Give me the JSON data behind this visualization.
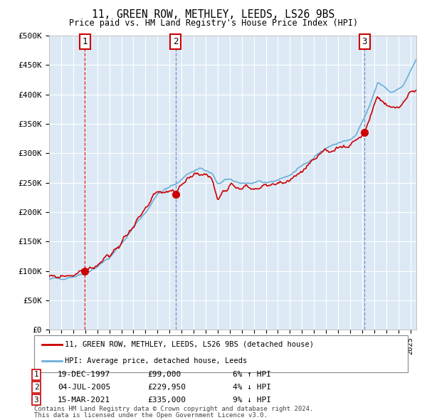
{
  "title": "11, GREEN ROW, METHLEY, LEEDS, LS26 9BS",
  "subtitle": "Price paid vs. HM Land Registry's House Price Index (HPI)",
  "legend_line1": "11, GREEN ROW, METHLEY, LEEDS, LS26 9BS (detached house)",
  "legend_line2": "HPI: Average price, detached house, Leeds",
  "transaction1": {
    "label": "1",
    "date": "19-DEC-1997",
    "price": 99000,
    "pct": "6%",
    "dir": "↑",
    "x_year": 1997.97
  },
  "transaction2": {
    "label": "2",
    "date": "04-JUL-2005",
    "price": 229950,
    "pct": "4%",
    "dir": "↓",
    "x_year": 2005.5
  },
  "transaction3": {
    "label": "3",
    "date": "15-MAR-2021",
    "price": 335000,
    "pct": "9%",
    "dir": "↓",
    "x_year": 2021.2
  },
  "ylabel_ticks": [
    "£0",
    "£50K",
    "£100K",
    "£150K",
    "£200K",
    "£250K",
    "£300K",
    "£350K",
    "£400K",
    "£450K",
    "£500K"
  ],
  "ytick_values": [
    0,
    50000,
    100000,
    150000,
    200000,
    250000,
    300000,
    350000,
    400000,
    450000,
    500000
  ],
  "ylim": [
    0,
    500000
  ],
  "xlim_start": 1995.0,
  "xlim_end": 2025.5,
  "bg_color": "#dce9f5",
  "hpi_color": "#6aafd6",
  "property_color": "#cc0000",
  "vline_color1": "#cc0000",
  "vline_color2": "#5577bb",
  "vline_color3": "#5577bb",
  "footnote1": "Contains HM Land Registry data © Crown copyright and database right 2024.",
  "footnote2": "This data is licensed under the Open Government Licence v3.0."
}
